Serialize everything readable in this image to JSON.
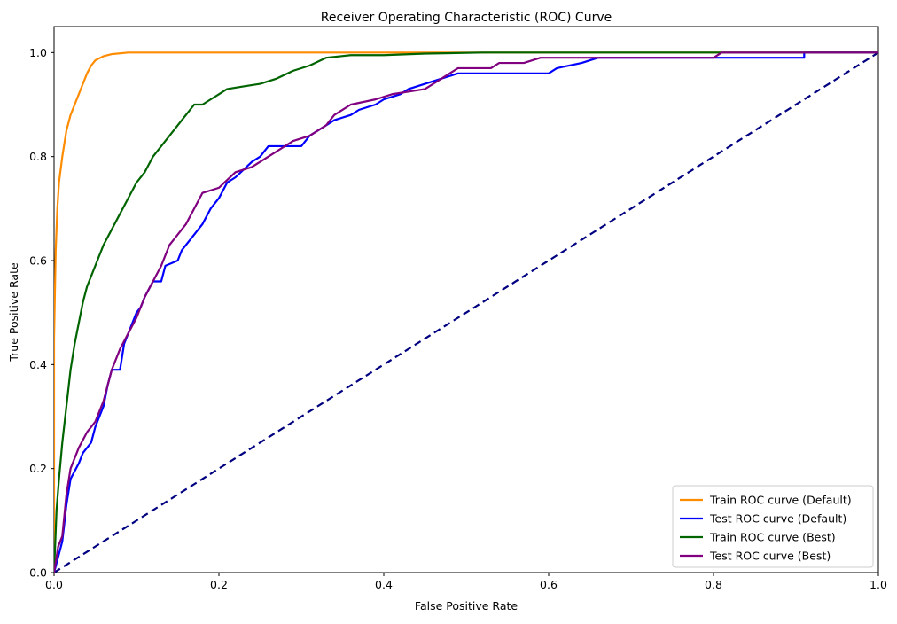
{
  "chart_data": {
    "type": "line",
    "title": "Receiver Operating Characteristic (ROC) Curve",
    "xlabel": "False Positive Rate",
    "ylabel": "True Positive Rate",
    "xlim": [
      0.0,
      1.0
    ],
    "ylim": [
      0.0,
      1.05
    ],
    "x_ticks": [
      "0.0",
      "0.2",
      "0.4",
      "0.6",
      "0.8",
      "1.0"
    ],
    "y_ticks": [
      "0.0",
      "0.2",
      "0.4",
      "0.6",
      "0.8",
      "1.0"
    ],
    "grid": false,
    "legend_position": "bottom-right",
    "series": [
      {
        "name": "Train ROC curve (Default)",
        "color": "#ff8c00",
        "dashed": false,
        "points": [
          [
            0,
            0
          ],
          [
            0,
            0.45
          ],
          [
            0.002,
            0.62
          ],
          [
            0.004,
            0.7
          ],
          [
            0.006,
            0.75
          ],
          [
            0.01,
            0.8
          ],
          [
            0.015,
            0.85
          ],
          [
            0.02,
            0.88
          ],
          [
            0.025,
            0.9
          ],
          [
            0.03,
            0.92
          ],
          [
            0.035,
            0.94
          ],
          [
            0.04,
            0.96
          ],
          [
            0.045,
            0.975
          ],
          [
            0.05,
            0.985
          ],
          [
            0.06,
            0.993
          ],
          [
            0.07,
            0.997
          ],
          [
            0.09,
            1.0
          ],
          [
            0.3,
            1.0
          ],
          [
            1.0,
            1.0
          ]
        ]
      },
      {
        "name": "Test ROC curve (Default)",
        "color": "#0000ff",
        "dashed": false,
        "points": [
          [
            0,
            0
          ],
          [
            0.01,
            0.06
          ],
          [
            0.015,
            0.13
          ],
          [
            0.02,
            0.18
          ],
          [
            0.03,
            0.21
          ],
          [
            0.035,
            0.23
          ],
          [
            0.045,
            0.25
          ],
          [
            0.05,
            0.28
          ],
          [
            0.055,
            0.3
          ],
          [
            0.06,
            0.32
          ],
          [
            0.065,
            0.36
          ],
          [
            0.07,
            0.39
          ],
          [
            0.08,
            0.39
          ],
          [
            0.085,
            0.44
          ],
          [
            0.09,
            0.46
          ],
          [
            0.095,
            0.48
          ],
          [
            0.1,
            0.5
          ],
          [
            0.105,
            0.51
          ],
          [
            0.11,
            0.53
          ],
          [
            0.12,
            0.56
          ],
          [
            0.13,
            0.56
          ],
          [
            0.135,
            0.59
          ],
          [
            0.15,
            0.6
          ],
          [
            0.155,
            0.62
          ],
          [
            0.16,
            0.63
          ],
          [
            0.17,
            0.65
          ],
          [
            0.18,
            0.67
          ],
          [
            0.19,
            0.7
          ],
          [
            0.2,
            0.72
          ],
          [
            0.21,
            0.75
          ],
          [
            0.22,
            0.76
          ],
          [
            0.24,
            0.79
          ],
          [
            0.25,
            0.8
          ],
          [
            0.26,
            0.82
          ],
          [
            0.3,
            0.82
          ],
          [
            0.31,
            0.84
          ],
          [
            0.33,
            0.86
          ],
          [
            0.34,
            0.87
          ],
          [
            0.36,
            0.88
          ],
          [
            0.37,
            0.89
          ],
          [
            0.39,
            0.9
          ],
          [
            0.4,
            0.91
          ],
          [
            0.42,
            0.92
          ],
          [
            0.43,
            0.93
          ],
          [
            0.45,
            0.94
          ],
          [
            0.47,
            0.95
          ],
          [
            0.49,
            0.96
          ],
          [
            0.6,
            0.96
          ],
          [
            0.61,
            0.97
          ],
          [
            0.64,
            0.98
          ],
          [
            0.66,
            0.99
          ],
          [
            0.8,
            0.99
          ],
          [
            0.91,
            0.99
          ],
          [
            0.91,
            1.0
          ],
          [
            1.0,
            1.0
          ]
        ]
      },
      {
        "name": "Train ROC curve (Best)",
        "color": "#006400",
        "dashed": false,
        "points": [
          [
            0,
            0
          ],
          [
            0.003,
            0.12
          ],
          [
            0.006,
            0.18
          ],
          [
            0.01,
            0.25
          ],
          [
            0.015,
            0.32
          ],
          [
            0.02,
            0.39
          ],
          [
            0.025,
            0.44
          ],
          [
            0.03,
            0.48
          ],
          [
            0.035,
            0.52
          ],
          [
            0.04,
            0.55
          ],
          [
            0.05,
            0.59
          ],
          [
            0.06,
            0.63
          ],
          [
            0.07,
            0.66
          ],
          [
            0.08,
            0.69
          ],
          [
            0.09,
            0.72
          ],
          [
            0.1,
            0.75
          ],
          [
            0.11,
            0.77
          ],
          [
            0.12,
            0.8
          ],
          [
            0.13,
            0.82
          ],
          [
            0.14,
            0.84
          ],
          [
            0.15,
            0.86
          ],
          [
            0.16,
            0.88
          ],
          [
            0.17,
            0.9
          ],
          [
            0.18,
            0.9
          ],
          [
            0.19,
            0.91
          ],
          [
            0.2,
            0.92
          ],
          [
            0.21,
            0.93
          ],
          [
            0.23,
            0.935
          ],
          [
            0.25,
            0.94
          ],
          [
            0.27,
            0.95
          ],
          [
            0.29,
            0.965
          ],
          [
            0.31,
            0.975
          ],
          [
            0.33,
            0.99
          ],
          [
            0.36,
            0.995
          ],
          [
            0.4,
            0.995
          ],
          [
            0.45,
            0.998
          ],
          [
            0.52,
            1.0
          ],
          [
            1.0,
            1.0
          ]
        ]
      },
      {
        "name": "Test ROC curve (Best)",
        "color": "#800080",
        "dashed": false,
        "points": [
          [
            0,
            0
          ],
          [
            0.005,
            0.05
          ],
          [
            0.01,
            0.07
          ],
          [
            0.015,
            0.15
          ],
          [
            0.02,
            0.2
          ],
          [
            0.03,
            0.24
          ],
          [
            0.04,
            0.27
          ],
          [
            0.05,
            0.29
          ],
          [
            0.055,
            0.31
          ],
          [
            0.06,
            0.33
          ],
          [
            0.065,
            0.36
          ],
          [
            0.07,
            0.39
          ],
          [
            0.08,
            0.43
          ],
          [
            0.09,
            0.46
          ],
          [
            0.1,
            0.49
          ],
          [
            0.11,
            0.53
          ],
          [
            0.12,
            0.56
          ],
          [
            0.13,
            0.59
          ],
          [
            0.14,
            0.63
          ],
          [
            0.15,
            0.65
          ],
          [
            0.16,
            0.67
          ],
          [
            0.17,
            0.7
          ],
          [
            0.18,
            0.73
          ],
          [
            0.2,
            0.74
          ],
          [
            0.22,
            0.77
          ],
          [
            0.24,
            0.78
          ],
          [
            0.25,
            0.79
          ],
          [
            0.27,
            0.81
          ],
          [
            0.29,
            0.83
          ],
          [
            0.31,
            0.84
          ],
          [
            0.33,
            0.86
          ],
          [
            0.34,
            0.88
          ],
          [
            0.36,
            0.9
          ],
          [
            0.39,
            0.91
          ],
          [
            0.41,
            0.92
          ],
          [
            0.45,
            0.93
          ],
          [
            0.47,
            0.95
          ],
          [
            0.49,
            0.97
          ],
          [
            0.53,
            0.97
          ],
          [
            0.54,
            0.98
          ],
          [
            0.57,
            0.98
          ],
          [
            0.59,
            0.99
          ],
          [
            0.8,
            0.99
          ],
          [
            0.81,
            1.0
          ],
          [
            1.0,
            1.0
          ]
        ]
      },
      {
        "name": "",
        "color": "#000080",
        "dashed": true,
        "points": [
          [
            0,
            0
          ],
          [
            1,
            1
          ]
        ]
      }
    ]
  }
}
